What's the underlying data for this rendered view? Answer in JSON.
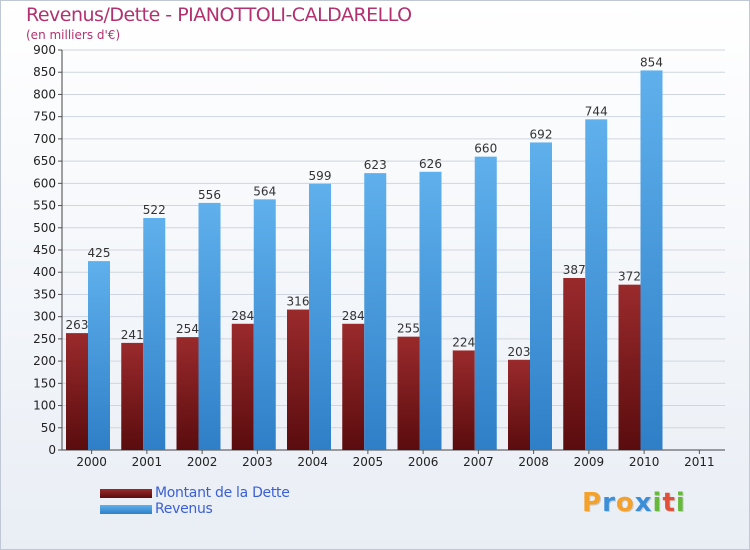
{
  "header": {
    "title": "Revenus/Dette - PIANOTTOLI-CALDARELLO",
    "subtitle": "(en milliers d'€)"
  },
  "chart_data": {
    "type": "bar",
    "categories": [
      "2000",
      "2001",
      "2002",
      "2003",
      "2004",
      "2005",
      "2006",
      "2007",
      "2008",
      "2009",
      "2010",
      "2011"
    ],
    "series": [
      {
        "name": "Montant de la Dette",
        "values": [
          263,
          241,
          254,
          284,
          316,
          284,
          255,
          224,
          203,
          387,
          372,
          null
        ],
        "color": "#7a1a1c"
      },
      {
        "name": "Revenus",
        "values": [
          425,
          522,
          556,
          564,
          599,
          623,
          626,
          660,
          692,
          744,
          854,
          null
        ],
        "color": "#4fa3e3"
      }
    ],
    "ylim": [
      0,
      900
    ],
    "yticks": [
      0,
      50,
      100,
      150,
      200,
      250,
      300,
      350,
      400,
      450,
      500,
      550,
      600,
      650,
      700,
      750,
      800,
      850,
      900
    ],
    "grid": true,
    "legend_position": "bottom-left",
    "show_value_labels": true
  },
  "logo": {
    "text": "Proxiti",
    "letters": [
      "P",
      "r",
      "o",
      "x",
      "i",
      "t",
      "i"
    ],
    "colors": [
      "#f3a12a",
      "#3b8fd9",
      "#f3a12a",
      "#3b8fd9",
      "#66b93a",
      "#e2503a",
      "#66b93a"
    ]
  }
}
